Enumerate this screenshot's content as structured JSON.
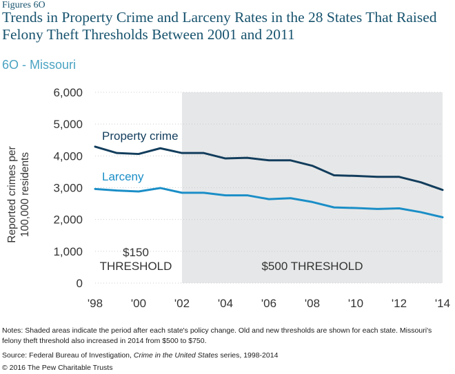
{
  "figure_label": "Figures 6O",
  "title": "Trends in Property Crime and Larceny Rates in the 28 States That Raised Felony Theft Thresholds Between 2001 and 2011",
  "subtitle": "6O - Missouri",
  "colors": {
    "title": "#17536e",
    "property_crime": "#123d5c",
    "larceny": "#1a8ec7",
    "shade": "#e6e7e8",
    "gridline": "#cccccc"
  },
  "chart_data": {
    "type": "line",
    "ylabel": "Reported crimes per 100,000 residents",
    "ylim": [
      0,
      6000
    ],
    "yticks": [
      0,
      1000,
      2000,
      3000,
      4000,
      5000,
      6000
    ],
    "ytick_labels": [
      "0",
      "1,000",
      "2,000",
      "3,000",
      "4,000",
      "5,000",
      "6,000"
    ],
    "xlim": [
      1998,
      2014
    ],
    "xticks": [
      1998,
      2000,
      2002,
      2004,
      2006,
      2008,
      2010,
      2012,
      2014
    ],
    "xtick_labels": [
      "'98",
      "'00",
      "'02",
      "'04",
      "'06",
      "'08",
      "'10",
      "'12",
      "'14"
    ],
    "x": [
      1998,
      1999,
      2000,
      2001,
      2002,
      2003,
      2004,
      2005,
      2006,
      2007,
      2008,
      2009,
      2010,
      2011,
      2012,
      2013,
      2014
    ],
    "series": [
      {
        "name": "Property crime",
        "values": [
          4290,
          4090,
          4060,
          4240,
          4090,
          4090,
          3920,
          3940,
          3860,
          3860,
          3690,
          3390,
          3370,
          3340,
          3340,
          3170,
          2930
        ]
      },
      {
        "name": "Larceny",
        "values": [
          2960,
          2910,
          2880,
          2990,
          2840,
          2840,
          2760,
          2760,
          2640,
          2670,
          2550,
          2380,
          2360,
          2330,
          2350,
          2230,
          2070
        ]
      }
    ],
    "shaded_region": {
      "from": 2002,
      "to": 2014
    },
    "annotations": [
      {
        "lines": [
          "$150",
          "THRESHOLD"
        ]
      },
      {
        "lines": [
          "$500 THRESHOLD"
        ]
      }
    ]
  },
  "notes": "Notes: Shaded areas indicate the period after each state's policy change. Old and new thresholds are shown for each state. Missouri's felony theft threshold also increased in 2014 from $500 to $750.",
  "source_prefix": "Source: Federal Bureau of Investigation, ",
  "source_title": "Crime in the United States",
  "source_suffix": " series, 1998-2014",
  "copyright": "© 2016 The Pew Charitable Trusts"
}
